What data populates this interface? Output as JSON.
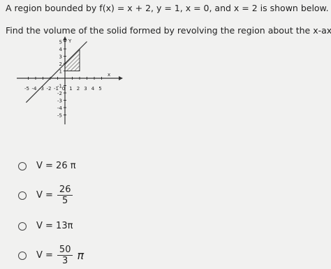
{
  "question": "A region bounded by f(x) = x + 2, y = 1, x = 0, and x = 2 is shown below.",
  "prompt": "Find the volume of the solid formed by revolving the region about the x-axis.",
  "graph": {
    "x_label": "x",
    "y_label": "Y",
    "x_ticks": [
      -5,
      -4,
      -3,
      -2,
      -1,
      0,
      1,
      2,
      3,
      4,
      5
    ],
    "y_ticks": [
      5,
      4,
      3,
      2,
      1,
      -1,
      -2,
      -3,
      -4,
      -5
    ]
  },
  "options": [
    {
      "lhs": "V = 26 π"
    },
    {
      "lhs": "V =",
      "numerator": "26",
      "denominator": "5"
    },
    {
      "lhs": "V = 13π"
    },
    {
      "lhs": "V =",
      "numerator": "50",
      "denominator": "3",
      "suffix": "π"
    }
  ]
}
